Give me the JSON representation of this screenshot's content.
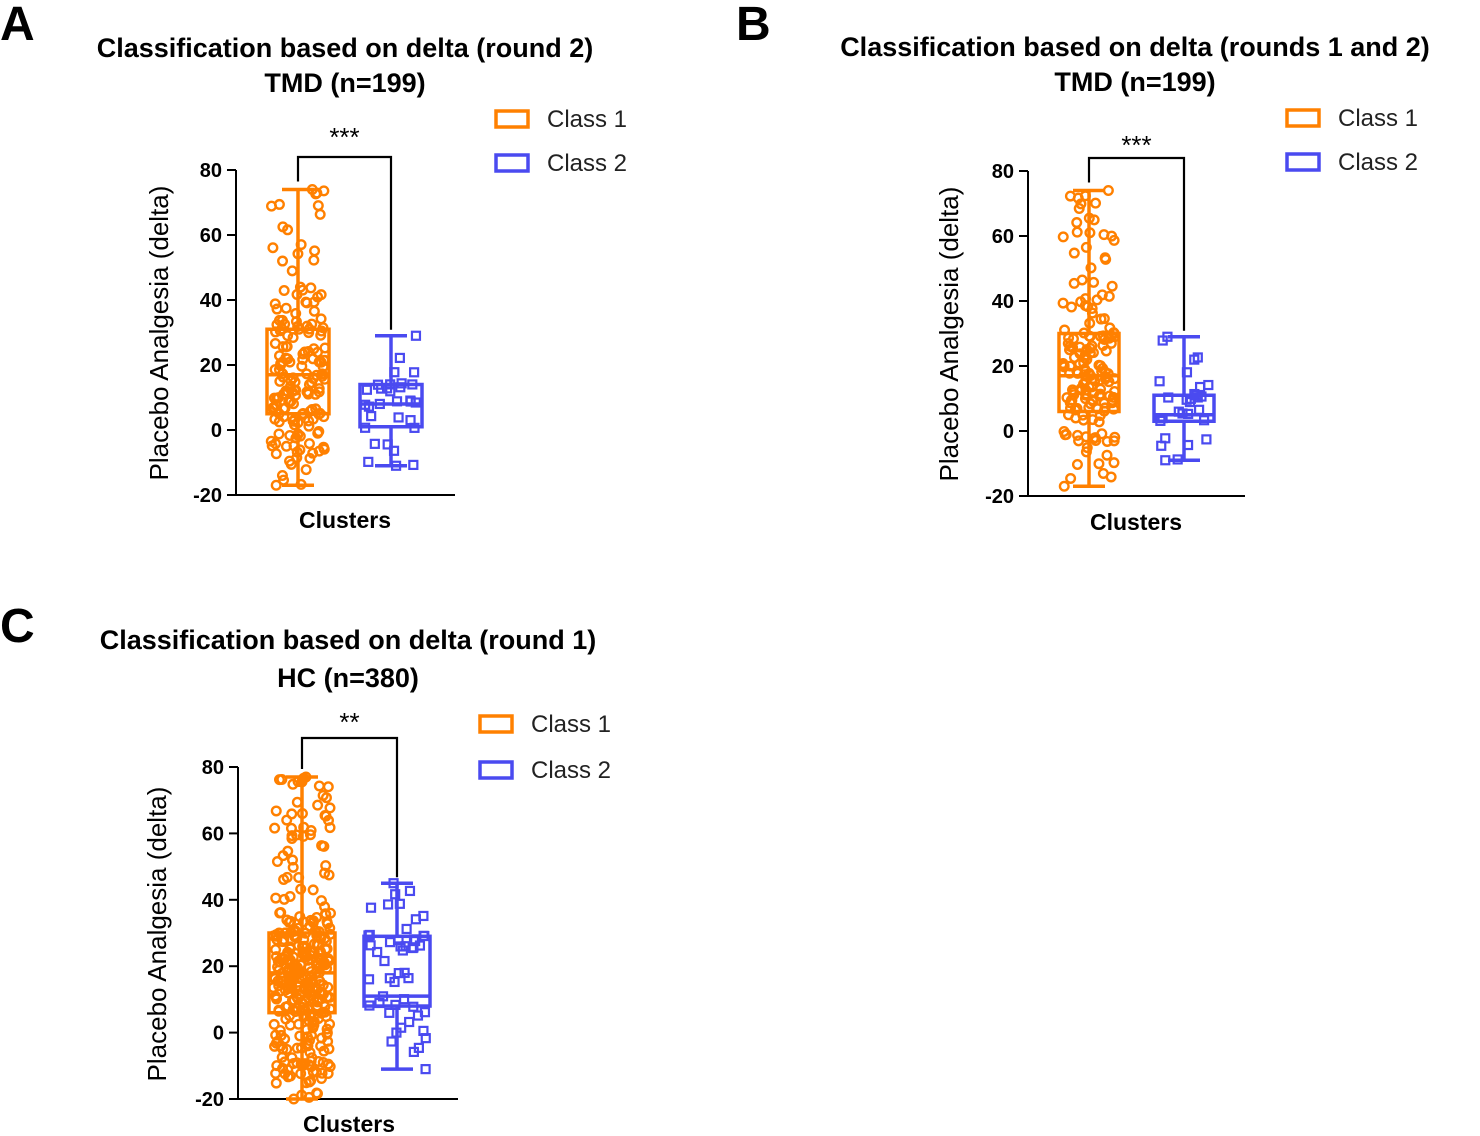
{
  "colors": {
    "class1": "#FF8000",
    "class2": "#4A4AF0",
    "axis": "#000000"
  },
  "chart_data": [
    {
      "panel": "A",
      "type": "box",
      "title": "Classification based on delta (round 2)",
      "subtitle": "TMD (n=199)",
      "xlabel": "Clusters",
      "ylabel": "Placebo Analgesia (delta)",
      "ylim": [
        -20,
        80
      ],
      "yticks": [
        -20,
        0,
        20,
        40,
        60,
        80
      ],
      "legend": [
        "Class 1",
        "Class 2"
      ],
      "significance": "***",
      "series": [
        {
          "name": "Class 1",
          "min": -17,
          "q1": 5,
          "median": 17,
          "q3": 31,
          "max": 74,
          "n": 168
        },
        {
          "name": "Class 2",
          "min": -11,
          "q1": 1,
          "median": 8,
          "q3": 14,
          "max": 29,
          "n": 31
        }
      ]
    },
    {
      "panel": "B",
      "type": "box",
      "title": "Classification based on delta (rounds 1 and 2)",
      "subtitle": "TMD (n=199)",
      "xlabel": "Clusters",
      "ylabel": "Placebo Analgesia (delta)",
      "ylim": [
        -20,
        80
      ],
      "yticks": [
        -20,
        0,
        20,
        40,
        60,
        80
      ],
      "legend": [
        "Class 1",
        "Class 2"
      ],
      "significance": "***",
      "series": [
        {
          "name": "Class 1",
          "min": -17,
          "q1": 6,
          "median": 17,
          "q3": 30,
          "max": 74,
          "n": 170
        },
        {
          "name": "Class 2",
          "min": -9,
          "q1": 3,
          "median": 5,
          "q3": 11,
          "max": 29,
          "n": 29
        }
      ]
    },
    {
      "panel": "C",
      "type": "box",
      "title": "Classification based on delta (round 1)",
      "subtitle": "HC (n=380)",
      "xlabel": "Clusters",
      "ylabel": "Placebo Analgesia (delta)",
      "ylim": [
        -20,
        80
      ],
      "yticks": [
        -20,
        0,
        20,
        40,
        60,
        80
      ],
      "legend": [
        "Class 1",
        "Class 2"
      ],
      "significance": "**",
      "series": [
        {
          "name": "Class 1",
          "min": -20,
          "q1": 6,
          "median": 18,
          "q3": 30,
          "max": 77,
          "n": 330
        },
        {
          "name": "Class 2",
          "min": -11,
          "q1": 8,
          "median": 11,
          "q3": 29,
          "max": 45,
          "n": 50
        }
      ]
    }
  ]
}
